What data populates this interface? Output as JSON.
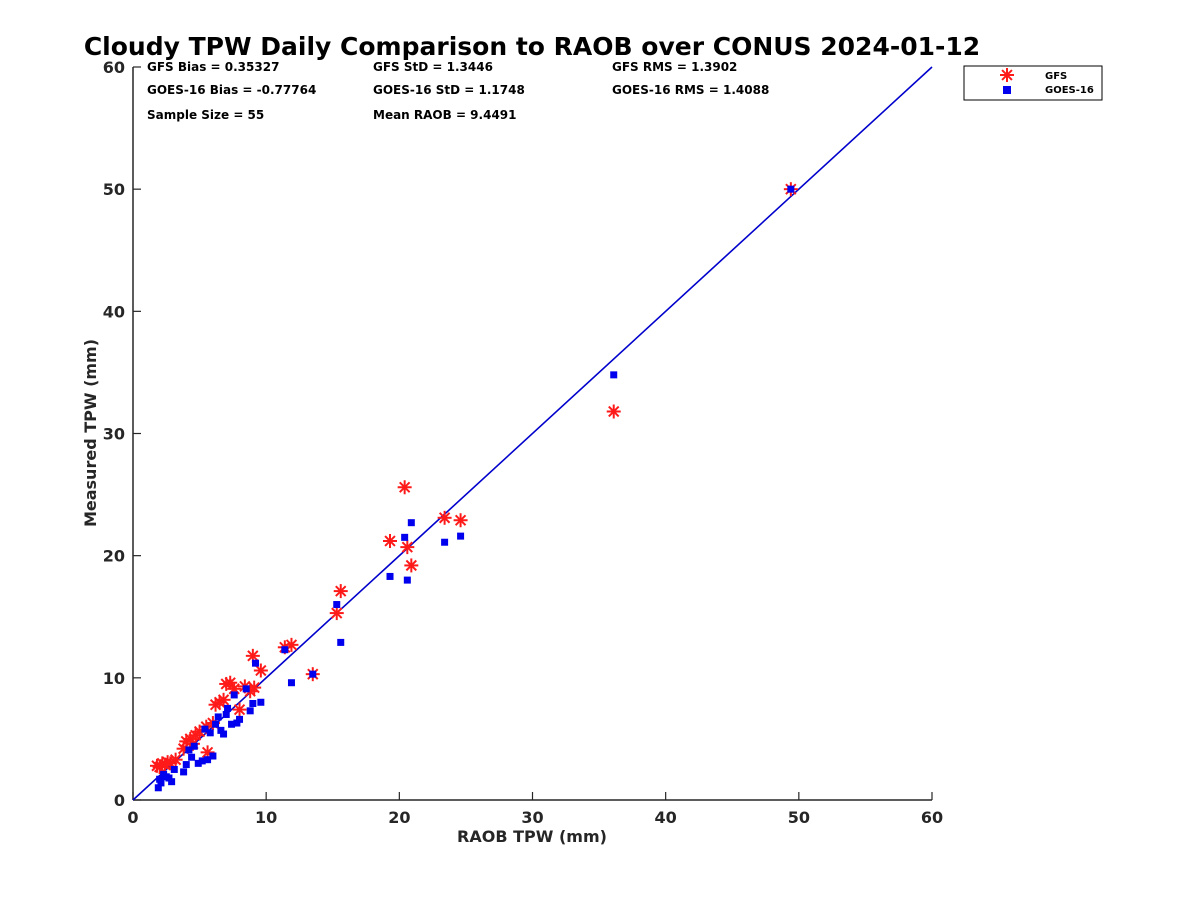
{
  "chart_data": {
    "type": "scatter",
    "title": "Cloudy TPW Daily Comparison to RAOB over CONUS 2024-01-12",
    "xlabel": "RAOB TPW (mm)",
    "ylabel": "Measured TPW (mm)",
    "xlim": [
      0,
      60
    ],
    "ylim": [
      0,
      60
    ],
    "xticks": [
      "0",
      "10",
      "20",
      "30",
      "40",
      "50",
      "60"
    ],
    "yticks": [
      "0",
      "10",
      "20",
      "30",
      "40",
      "50",
      "60"
    ],
    "grid": false,
    "legend_position": "top-right",
    "reference_line": {
      "x": [
        0,
        60
      ],
      "y": [
        0,
        60
      ],
      "color": "#0000cc"
    },
    "stats": {
      "gfs_bias": "GFS Bias = 0.35327",
      "gfs_std": "GFS StD = 1.3446",
      "gfs_rms": "GFS RMS = 1.3902",
      "goes_bias": "GOES-16 Bias = -0.77764",
      "goes_std": "GOES-16 StD = 1.1748",
      "goes_rms": "GOES-16 RMS = 1.4088",
      "sample_size": "Sample Size = 55",
      "mean_raob": "Mean RAOB = 9.4491"
    },
    "series": [
      {
        "name": "GFS",
        "marker": "asterisk",
        "color": "#ff1a1a",
        "points": [
          [
            1.8,
            2.8
          ],
          [
            2.0,
            2.7
          ],
          [
            2.2,
            3.0
          ],
          [
            2.4,
            2.9
          ],
          [
            2.6,
            3.1
          ],
          [
            2.8,
            3.0
          ],
          [
            3.2,
            3.3
          ],
          [
            3.8,
            4.2
          ],
          [
            4.0,
            4.8
          ],
          [
            4.3,
            5.0
          ],
          [
            4.5,
            4.6
          ],
          [
            4.7,
            5.3
          ],
          [
            5.0,
            5.6
          ],
          [
            5.5,
            6.0
          ],
          [
            5.6,
            3.9
          ],
          [
            6.0,
            6.3
          ],
          [
            6.2,
            7.8
          ],
          [
            6.5,
            8.0
          ],
          [
            6.8,
            8.2
          ],
          [
            7.0,
            9.5
          ],
          [
            7.3,
            9.6
          ],
          [
            7.6,
            9.1
          ],
          [
            8.0,
            7.4
          ],
          [
            8.4,
            9.3
          ],
          [
            8.8,
            8.9
          ],
          [
            9.0,
            11.8
          ],
          [
            9.1,
            9.2
          ],
          [
            9.6,
            10.6
          ],
          [
            11.4,
            12.5
          ],
          [
            11.9,
            12.7
          ],
          [
            13.5,
            10.3
          ],
          [
            15.3,
            15.3
          ],
          [
            15.6,
            17.1
          ],
          [
            19.3,
            21.2
          ],
          [
            20.4,
            25.6
          ],
          [
            20.6,
            20.7
          ],
          [
            20.9,
            19.2
          ],
          [
            23.4,
            23.1
          ],
          [
            24.6,
            22.9
          ],
          [
            36.1,
            31.8
          ],
          [
            49.4,
            50.0
          ]
        ]
      },
      {
        "name": "GOES-16",
        "marker": "square",
        "color": "#0000ee",
        "points": [
          [
            1.9,
            1.0
          ],
          [
            2.0,
            1.7
          ],
          [
            2.1,
            1.4
          ],
          [
            2.3,
            2.1
          ],
          [
            2.5,
            1.9
          ],
          [
            2.7,
            1.8
          ],
          [
            2.9,
            1.5
          ],
          [
            3.1,
            2.5
          ],
          [
            3.8,
            2.3
          ],
          [
            4.0,
            2.9
          ],
          [
            4.2,
            4.1
          ],
          [
            4.4,
            3.5
          ],
          [
            4.6,
            4.4
          ],
          [
            4.9,
            3.0
          ],
          [
            5.2,
            3.2
          ],
          [
            5.4,
            5.8
          ],
          [
            5.6,
            3.3
          ],
          [
            5.8,
            5.5
          ],
          [
            6.0,
            3.6
          ],
          [
            6.2,
            6.2
          ],
          [
            6.4,
            6.8
          ],
          [
            6.6,
            5.7
          ],
          [
            6.8,
            5.4
          ],
          [
            7.0,
            7.0
          ],
          [
            7.1,
            7.5
          ],
          [
            7.4,
            6.2
          ],
          [
            7.6,
            8.6
          ],
          [
            7.8,
            6.3
          ],
          [
            8.0,
            6.6
          ],
          [
            8.5,
            9.1
          ],
          [
            8.8,
            7.3
          ],
          [
            9.0,
            7.9
          ],
          [
            9.2,
            11.2
          ],
          [
            9.6,
            8.0
          ],
          [
            11.4,
            12.3
          ],
          [
            11.9,
            9.6
          ],
          [
            13.5,
            10.3
          ],
          [
            15.3,
            16.0
          ],
          [
            15.6,
            12.9
          ],
          [
            19.3,
            18.3
          ],
          [
            20.4,
            21.5
          ],
          [
            20.6,
            18.0
          ],
          [
            20.9,
            22.7
          ],
          [
            23.4,
            21.1
          ],
          [
            24.6,
            21.6
          ],
          [
            36.1,
            34.8
          ],
          [
            49.4,
            50.0
          ]
        ]
      }
    ]
  }
}
